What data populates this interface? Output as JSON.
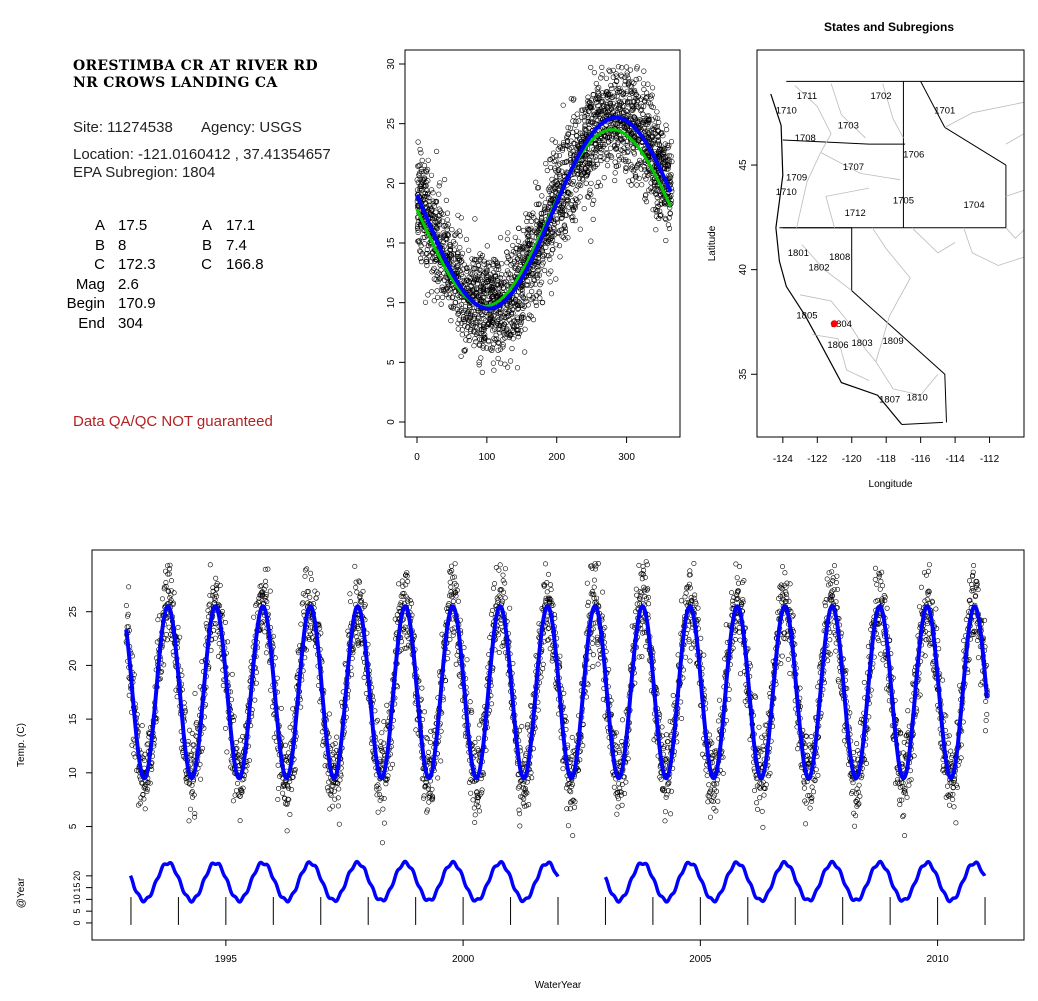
{
  "site": {
    "name_line1": "ORESTIMBA CR AT RIVER RD",
    "name_line2": "NR CROWS LANDING CA",
    "site_label": "Site: 11274538",
    "agency_label": "Agency: USGS",
    "location_label": "Location: -121.0160412 , 37.41354657",
    "subregion_label": "EPA Subregion: 1804",
    "qa_note": "Data QA/QC NOT guaranteed",
    "qa_color": "#b22222"
  },
  "params": {
    "labels": [
      "A",
      "B",
      "C",
      "Mag",
      "Begin",
      "End"
    ],
    "col1": [
      "17.5",
      "8",
      "172.3",
      "2.6",
      "170.9",
      "304"
    ],
    "col2_labels": [
      "A",
      "B",
      "C"
    ],
    "col2": [
      "17.1",
      "7.4",
      "166.8"
    ]
  },
  "colors": {
    "fit_blue": "#0000ff",
    "fit_green": "#00cc00",
    "point": "#000000",
    "site_dot": "#ff0000"
  },
  "chart_data": [
    {
      "id": "seasonal",
      "type": "scatter",
      "title": "",
      "xlabel": "",
      "ylabel": "",
      "xlim": [
        0,
        365
      ],
      "ylim": [
        0,
        30
      ],
      "xticks": [
        0,
        100,
        200,
        300
      ],
      "yticks": [
        0,
        5,
        10,
        15,
        20,
        25,
        30
      ],
      "series": [
        {
          "kind": "points",
          "model": {
            "A": 17.5,
            "B": 8,
            "C": 172.3
          },
          "spread": 2.6
        },
        {
          "kind": "line",
          "color": "#00cc00",
          "model": {
            "A": 17.1,
            "B": 7.4,
            "C": 166.8
          }
        },
        {
          "kind": "line",
          "color": "#0000ff",
          "model": {
            "A": 17.5,
            "B": 8,
            "C": 172.3
          }
        }
      ]
    },
    {
      "id": "map",
      "type": "map",
      "title": "States and Subregions",
      "xlabel": "Longitude",
      "ylabel": "Latitude",
      "xlim": [
        -125.5,
        -110
      ],
      "ylim": [
        32,
        50.5
      ],
      "xticks": [
        -124,
        -122,
        -120,
        -118,
        -116,
        -114,
        -112
      ],
      "yticks": [
        35,
        40,
        45
      ],
      "regions": [
        {
          "label": "1711",
          "lon": -122.6,
          "lat": 48.3
        },
        {
          "label": "1710",
          "lon": -123.8,
          "lat": 47.6
        },
        {
          "label": "1702",
          "lon": -118.3,
          "lat": 48.3
        },
        {
          "label": "1701",
          "lon": -114.6,
          "lat": 47.6
        },
        {
          "label": "1703",
          "lon": -120.2,
          "lat": 46.9
        },
        {
          "label": "1708",
          "lon": -122.7,
          "lat": 46.3
        },
        {
          "label": "1706",
          "lon": -116.4,
          "lat": 45.5
        },
        {
          "label": "1707",
          "lon": -119.9,
          "lat": 44.9
        },
        {
          "label": "1709",
          "lon": -123.2,
          "lat": 44.4
        },
        {
          "label": "1710",
          "lon": -123.8,
          "lat": 43.7
        },
        {
          "label": "1705",
          "lon": -117,
          "lat": 43.3
        },
        {
          "label": "1704",
          "lon": -112.9,
          "lat": 43.1
        },
        {
          "label": "1712",
          "lon": -119.8,
          "lat": 42.7
        },
        {
          "label": "1801",
          "lon": -123.1,
          "lat": 40.8
        },
        {
          "label": "1808",
          "lon": -120.7,
          "lat": 40.6
        },
        {
          "label": "1802",
          "lon": -121.9,
          "lat": 40.1
        },
        {
          "label": "1805",
          "lon": -122.6,
          "lat": 37.8
        },
        {
          "label": "1804",
          "lon": -120.6,
          "lat": 37.4
        },
        {
          "label": "1806",
          "lon": -120.8,
          "lat": 36.4
        },
        {
          "label": "1803",
          "lon": -119.4,
          "lat": 36.5
        },
        {
          "label": "1809",
          "lon": -117.6,
          "lat": 36.6
        },
        {
          "label": "1807",
          "lon": -117.8,
          "lat": 33.8
        },
        {
          "label": "1810",
          "lon": -116.2,
          "lat": 33.9
        }
      ],
      "site": {
        "lon": -121.0160412,
        "lat": 37.41354657
      }
    },
    {
      "id": "timeseries",
      "type": "scatter",
      "title": "",
      "xlabel": "WaterYear",
      "ylabel": "Temp. (C)",
      "xlim": [
        1992.2,
        2011.8
      ],
      "ylim": [
        3.0,
        30.0
      ],
      "xticks": [
        1995,
        2000,
        2005,
        2010
      ],
      "yticks": [
        5,
        10,
        15,
        20,
        25
      ],
      "start": 1992.9,
      "end": 2011.05,
      "model": {
        "A": 17.5,
        "B": 8,
        "C": 172.3
      }
    },
    {
      "id": "peryear",
      "type": "line",
      "ylabel": "@Year",
      "ylim": [
        -3,
        28
      ],
      "yticks": [
        0,
        5,
        10,
        15,
        20
      ],
      "years": [
        1993,
        1994,
        1995,
        1996,
        1997,
        1998,
        1999,
        2000,
        2001,
        2002,
        2004,
        2005,
        2006,
        2007,
        2008,
        2009,
        2010,
        2011
      ],
      "gap_after": 2002,
      "year_dividers": [
        1993,
        1994,
        1995,
        1996,
        1997,
        1998,
        1999,
        2000,
        2001,
        2002,
        2003,
        2004,
        2005,
        2006,
        2007,
        2008,
        2009,
        2010,
        2011
      ]
    }
  ]
}
